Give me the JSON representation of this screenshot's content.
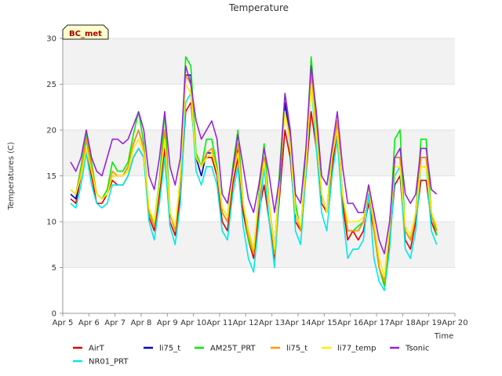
{
  "chart_data": {
    "type": "line",
    "title": "Temperature",
    "xlabel": "Time",
    "ylabel": "Temperatures (C)",
    "badge": "BC_met",
    "ylim": [
      0,
      30
    ],
    "xlim": [
      5,
      20
    ],
    "yticks": [
      0,
      5,
      10,
      15,
      20,
      25,
      30
    ],
    "xticks": [
      {
        "v": 5,
        "label": "Apr 5"
      },
      {
        "v": 6,
        "label": "Apr 6"
      },
      {
        "v": 7,
        "label": "Apr 7"
      },
      {
        "v": 8,
        "label": "Apr 8"
      },
      {
        "v": 9,
        "label": "Apr 9"
      },
      {
        "v": 10,
        "label": "Apr 10"
      },
      {
        "v": 11,
        "label": "Apr 11"
      },
      {
        "v": 12,
        "label": "Apr 12"
      },
      {
        "v": 13,
        "label": "Apr 13"
      },
      {
        "v": 14,
        "label": "Apr 14"
      },
      {
        "v": 15,
        "label": "Apr 15"
      },
      {
        "v": 16,
        "label": "Apr 16"
      },
      {
        "v": 17,
        "label": "Apr 17"
      },
      {
        "v": 18,
        "label": "Apr 18"
      },
      {
        "v": 19,
        "label": "Apr 19"
      },
      {
        "v": 20,
        "label": "Apr 20"
      }
    ],
    "grid": true,
    "legend_position": "bottom",
    "x": [
      5.3,
      5.5,
      5.7,
      5.9,
      6.1,
      6.3,
      6.5,
      6.7,
      6.9,
      7.1,
      7.3,
      7.5,
      7.7,
      7.9,
      8.1,
      8.3,
      8.5,
      8.7,
      8.9,
      9.1,
      9.3,
      9.5,
      9.7,
      9.9,
      10.1,
      10.3,
      10.5,
      10.7,
      10.9,
      11.1,
      11.3,
      11.5,
      11.7,
      11.9,
      12.1,
      12.3,
      12.5,
      12.7,
      12.9,
      13.1,
      13.3,
      13.5,
      13.7,
      13.9,
      14.1,
      14.3,
      14.5,
      14.7,
      14.9,
      15.1,
      15.3,
      15.5,
      15.7,
      15.9,
      16.1,
      16.3,
      16.5,
      16.7,
      16.9,
      17.1,
      17.3,
      17.5,
      17.7,
      17.9,
      18.1,
      18.3,
      18.5,
      18.7,
      18.9,
      19.1,
      19.3
    ],
    "series": [
      {
        "name": "AirT",
        "color": "#dd0000",
        "values": [
          12.5,
          12,
          15,
          18,
          15,
          12,
          12,
          13,
          14.5,
          14,
          14,
          15,
          17,
          18,
          17,
          10.5,
          9,
          13,
          18,
          10,
          8.5,
          13,
          22,
          23,
          17,
          16,
          17,
          17,
          15,
          10,
          9,
          14,
          17,
          11,
          8,
          6,
          11,
          14,
          10,
          6,
          13,
          20,
          17,
          10,
          9,
          15,
          22,
          18,
          12,
          11,
          16,
          20,
          12,
          8,
          9,
          8,
          9,
          12,
          9,
          5,
          3,
          8,
          14,
          15,
          8,
          7,
          10,
          14.5,
          14.5,
          10,
          8.5
        ]
      },
      {
        "name": "NR01_PRT",
        "color": "#00e8e8",
        "values": [
          12,
          11.5,
          14,
          17.5,
          14,
          12,
          11.5,
          12,
          14,
          14,
          14,
          15,
          17,
          18,
          17,
          10,
          8,
          12,
          17,
          9.5,
          7.5,
          12,
          23,
          24,
          15.5,
          14,
          16,
          16,
          14,
          9,
          8,
          13,
          16,
          9.5,
          6,
          4.5,
          10,
          16,
          10,
          5,
          14,
          23,
          18,
          9,
          7.5,
          15,
          25,
          18,
          11,
          9,
          15,
          19,
          11,
          6,
          7,
          7,
          8,
          13,
          6,
          3.5,
          2.5,
          7,
          15,
          16,
          7,
          6,
          9,
          16,
          16,
          9,
          7.5
        ]
      },
      {
        "name": "li75_t",
        "color": "#0000cc",
        "values": [
          13,
          12.5,
          15.5,
          19,
          16,
          13,
          12.5,
          13,
          15,
          15,
          15,
          16,
          18.5,
          20,
          18,
          11,
          9.5,
          14,
          20,
          11,
          9,
          15,
          26,
          26,
          17,
          15,
          17.5,
          17.5,
          15.5,
          11,
          10,
          15,
          18,
          12,
          9,
          7,
          12,
          17,
          12,
          7,
          15,
          23,
          19,
          11,
          9,
          16,
          26,
          20,
          13,
          11,
          17,
          21,
          13,
          9,
          9,
          9,
          10,
          14,
          10,
          5,
          3.5,
          9,
          17,
          17,
          9,
          8,
          11,
          17,
          17,
          11,
          9
        ]
      },
      {
        "name": "AM25T_PRT",
        "color": "#00ee00",
        "values": [
          13.5,
          13,
          16,
          19.5,
          16.5,
          13,
          12.5,
          13.5,
          16.5,
          15.5,
          15.5,
          16.5,
          19.5,
          22,
          18.5,
          11,
          10,
          14.5,
          22,
          11,
          9,
          15,
          28,
          27,
          17.5,
          16,
          19,
          19,
          16,
          11.5,
          10.5,
          16,
          20,
          12,
          8,
          6.5,
          13,
          18.5,
          12,
          6.5,
          16,
          24,
          20,
          12,
          9,
          17,
          28,
          21,
          13,
          11,
          18,
          20,
          13,
          9,
          9,
          9.5,
          10,
          14,
          9,
          5,
          3,
          9,
          19,
          20,
          9,
          8,
          11,
          19,
          19,
          11,
          8.5
        ]
      },
      {
        "name": "li75_t",
        "color": "#ff9900",
        "values": [
          13.5,
          13,
          15.5,
          19,
          16,
          13,
          12.5,
          13,
          15.5,
          15,
          15,
          16,
          18.5,
          20,
          18,
          11,
          9.5,
          14,
          20,
          11,
          9,
          15,
          26,
          25,
          17,
          16,
          17.5,
          18,
          15.5,
          11,
          10,
          15,
          18.5,
          12,
          8.5,
          6.5,
          12.5,
          17,
          12,
          6.5,
          15,
          22,
          19,
          11,
          9,
          16,
          26,
          20,
          13,
          11,
          17,
          21,
          13,
          9,
          9,
          9,
          10,
          14,
          9,
          5,
          3.5,
          9,
          17,
          17,
          9,
          8,
          11,
          17,
          17,
          11,
          9
        ]
      },
      {
        "name": "li77_temp",
        "color": "#ffee00",
        "values": [
          13.5,
          13,
          15,
          18,
          15.5,
          13,
          12.5,
          13,
          15,
          15,
          15,
          15.5,
          18,
          19,
          17.5,
          11.5,
          10,
          14,
          19,
          11,
          9.5,
          15,
          25,
          24,
          17,
          16,
          17,
          17.5,
          15.5,
          11.5,
          10.5,
          15,
          17.5,
          12,
          9,
          7,
          12.5,
          16.5,
          12,
          7,
          15,
          22,
          18.5,
          11,
          9.5,
          16,
          25,
          19.5,
          13,
          11,
          17,
          20,
          13,
          10,
          10,
          10,
          10.5,
          14,
          10,
          6,
          4,
          9.5,
          16,
          16,
          9.5,
          8.5,
          11,
          16,
          16,
          11,
          9.5
        ]
      },
      {
        "name": "Tsonic",
        "color": "#9922dd",
        "values": [
          16.5,
          15.5,
          17,
          20,
          17,
          15.5,
          15,
          17,
          19,
          19,
          18.5,
          19,
          20.5,
          22,
          20,
          15,
          13.5,
          17,
          22,
          16,
          14,
          17,
          27,
          25,
          21,
          19,
          20,
          21,
          19,
          13,
          12,
          15.5,
          19.5,
          16,
          12.5,
          11,
          14,
          18,
          15,
          11,
          15,
          24,
          20,
          13,
          12,
          18,
          27,
          22,
          15,
          14,
          18,
          22,
          16,
          12,
          12,
          11,
          11,
          14,
          11,
          8,
          6.5,
          10,
          17,
          18,
          13,
          12,
          13,
          18,
          18,
          13.5,
          13
        ]
      }
    ]
  }
}
